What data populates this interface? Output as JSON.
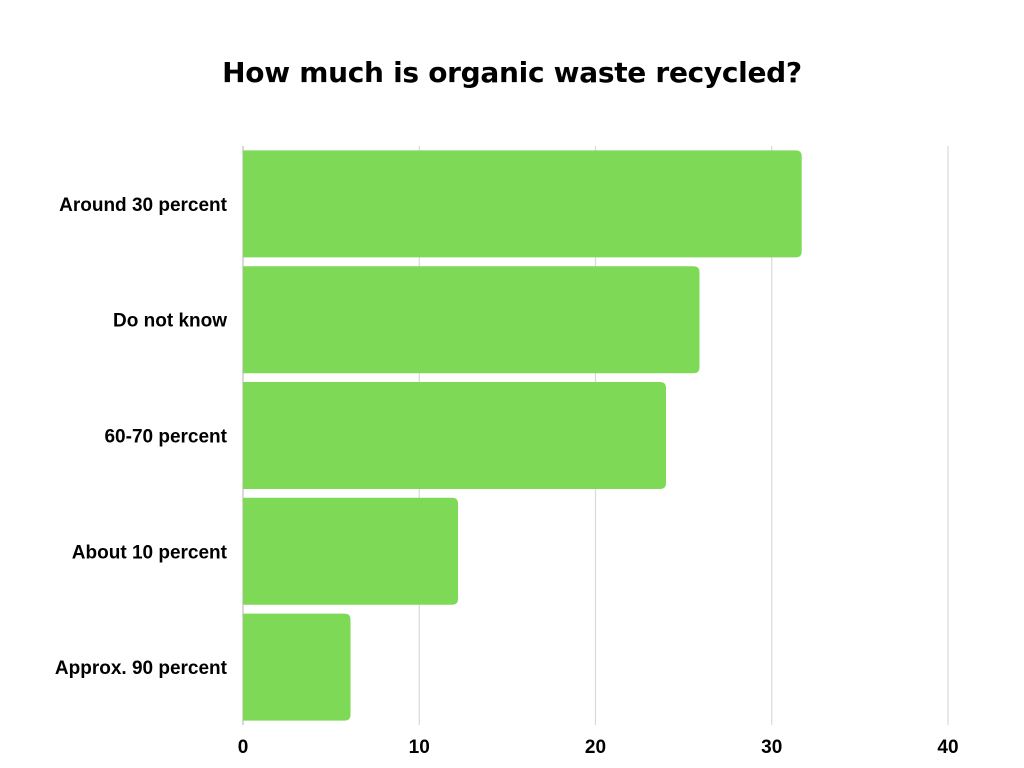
{
  "chart_data": {
    "type": "bar",
    "orientation": "horizontal",
    "title": "How much is organic waste recycled?",
    "categories": [
      "Around 30 percent",
      "Do not know",
      "60-70 percent",
      "About 10 percent",
      "Approx. 90 percent"
    ],
    "values": [
      31.7,
      25.9,
      24,
      12.2,
      6.1
    ],
    "xlim": [
      0,
      40
    ],
    "xticks": [
      "0",
      "10",
      "20",
      "30",
      "40"
    ],
    "grid": true,
    "bar_color": "#7ED957",
    "grid_color": "#d9d9d9"
  }
}
